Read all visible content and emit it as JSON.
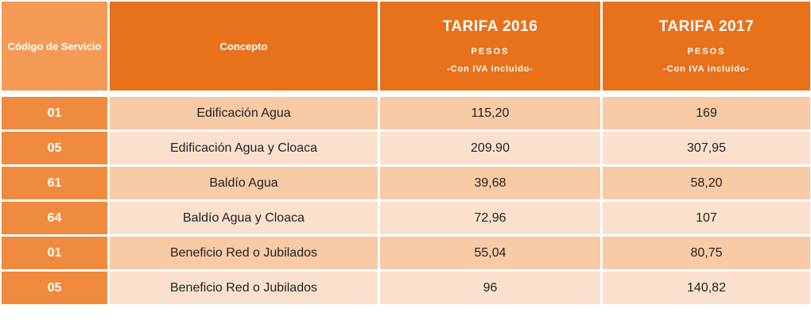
{
  "table": {
    "headers": {
      "codigo": "Código de Servicio",
      "concepto": "Concepto",
      "tarifa_2016": {
        "title": "TARIFA 2016",
        "unit": "PESOS",
        "note": "-Con IVA incluido-"
      },
      "tarifa_2017": {
        "title": "TARIFA 2017",
        "unit": "PESOS",
        "note": "-Con IVA incluido-"
      }
    },
    "rows": [
      {
        "codigo": "01",
        "concepto": "Edificación Agua",
        "tarifa_2016": "115,20",
        "tarifa_2017": "169"
      },
      {
        "codigo": "05",
        "concepto": "Edificación Agua y Cloaca",
        "tarifa_2016": "209.90",
        "tarifa_2017": "307,95"
      },
      {
        "codigo": "61",
        "concepto": "Baldío Agua",
        "tarifa_2016": "39,68",
        "tarifa_2017": "58,20"
      },
      {
        "codigo": "64",
        "concepto": "Baldío Agua y Cloaca",
        "tarifa_2016": "72,96",
        "tarifa_2017": "107"
      },
      {
        "codigo": "01",
        "concepto": "Beneficio Red o Jubilados",
        "tarifa_2016": "55,04",
        "tarifa_2017": "80,75"
      },
      {
        "codigo": "05",
        "concepto": "Beneficio Red o Jubilados",
        "tarifa_2016": "96",
        "tarifa_2017": "140,82"
      }
    ],
    "colors": {
      "header_dark": "#e8711b",
      "header_light": "#f49a55",
      "code_cell": "#ef8a3e",
      "row_dark": "#f8caa6",
      "row_light": "#fbe1cd"
    }
  }
}
